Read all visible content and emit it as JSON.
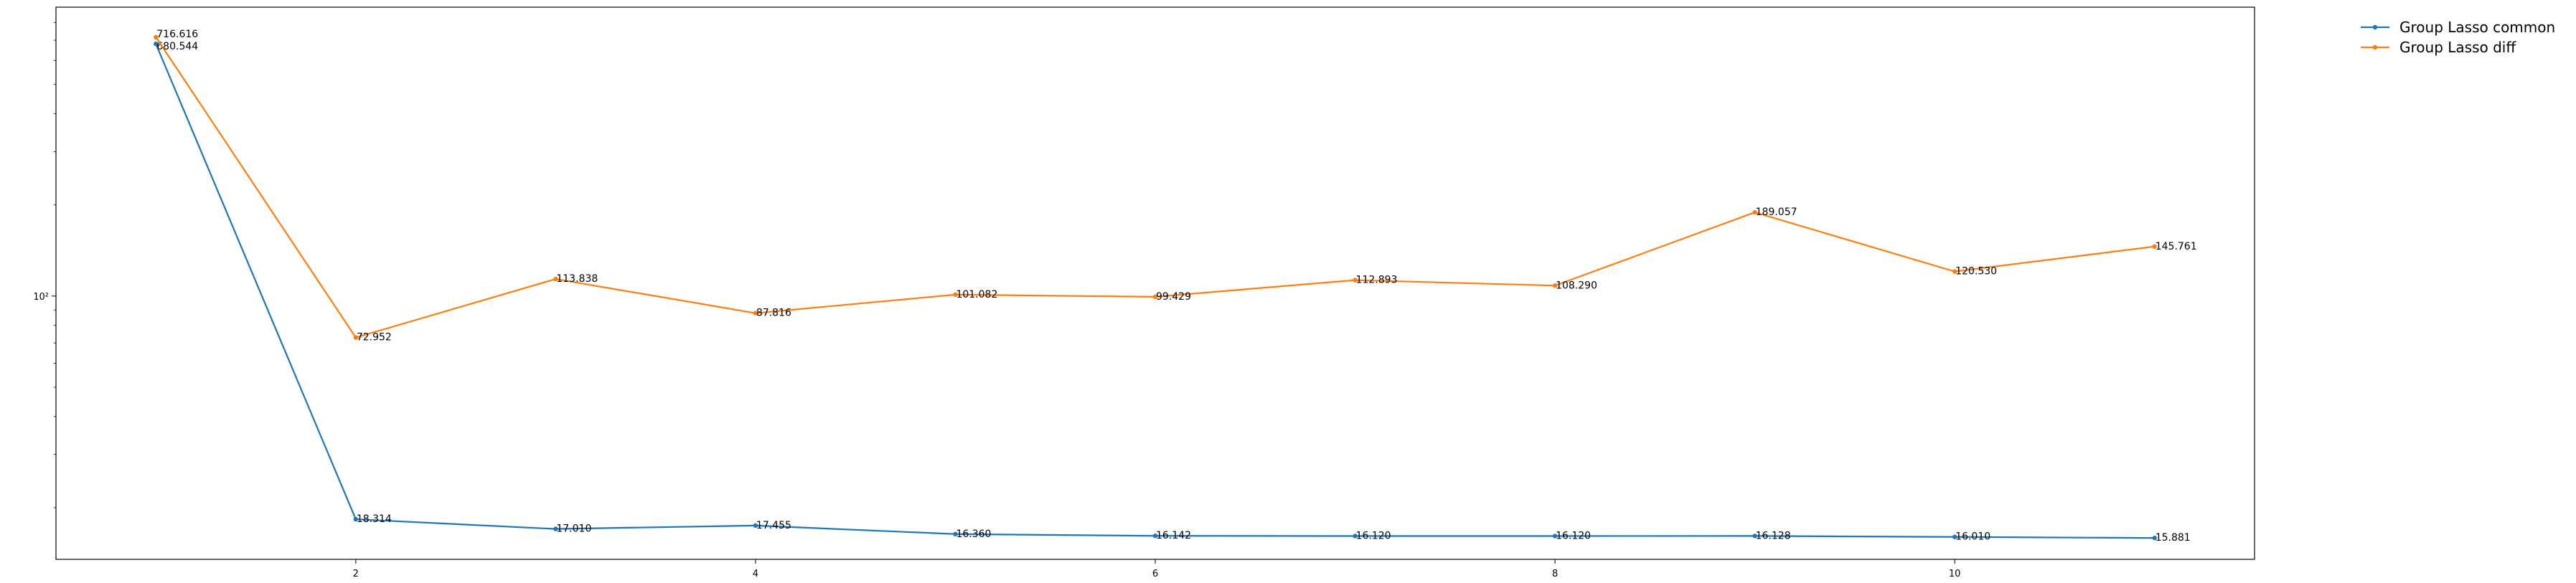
{
  "chart_data": {
    "type": "line",
    "title": "",
    "xlabel": "",
    "ylabel": "",
    "x": [
      1,
      2,
      3,
      4,
      5,
      6,
      7,
      8,
      9,
      10,
      11
    ],
    "xticks": [
      2,
      4,
      6,
      8,
      10
    ],
    "xtick_labels": [
      "2",
      "4",
      "6",
      "8",
      "10"
    ],
    "xlim": [
      0.5,
      11.5
    ],
    "yscale": "log",
    "ylim": [
      13.5,
      900
    ],
    "yticks": [
      100
    ],
    "ytick_labels": [
      "10²"
    ],
    "grid": false,
    "legend": "outside-top-right",
    "series": [
      {
        "name": "Group Lasso common",
        "color": "#1f77b4",
        "marker": "dot",
        "values": [
          680.544,
          18.314,
          17.01,
          17.455,
          16.36,
          16.142,
          16.12,
          16.12,
          16.128,
          16.01,
          15.881
        ],
        "labels": [
          "680.544",
          "18.314",
          "17.010",
          "17.455",
          "16.360",
          "16.142",
          "16.120",
          "16.120",
          "16.128",
          "16.010",
          "15.881"
        ]
      },
      {
        "name": "Group Lasso diff",
        "color": "#ff7f0e",
        "marker": "dot",
        "values": [
          716.616,
          72.952,
          113.838,
          87.816,
          101.082,
          99.429,
          112.893,
          108.29,
          189.057,
          120.53,
          145.761
        ],
        "labels": [
          "716.616",
          "72.952",
          "113.838",
          "87.816",
          "101.082",
          "99.429",
          "112.893",
          "108.290",
          "189.057",
          "120.530",
          "145.761"
        ]
      }
    ]
  }
}
